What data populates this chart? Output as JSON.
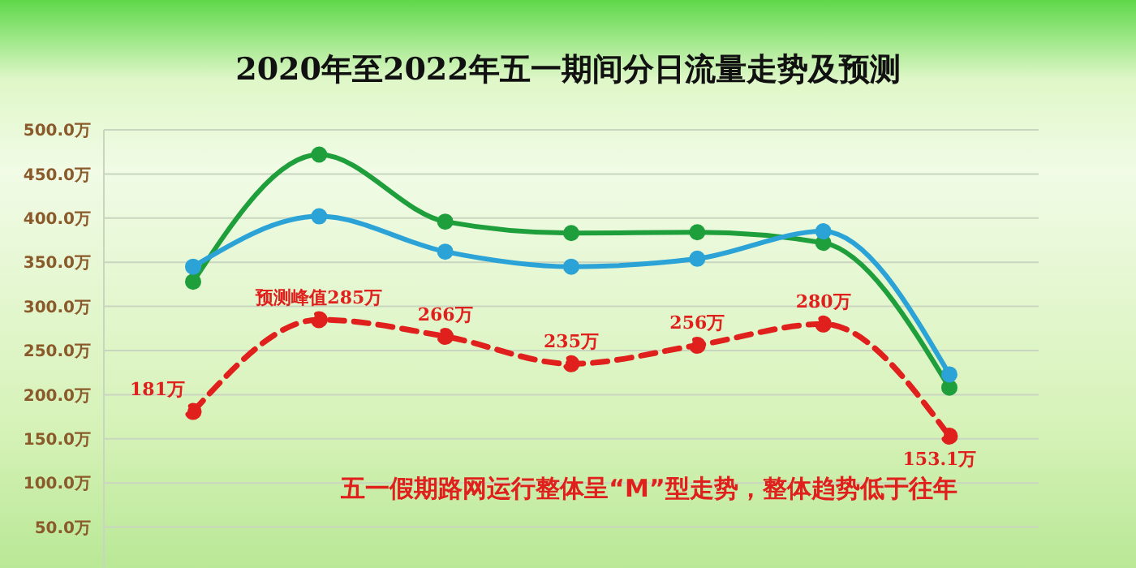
{
  "chart_data": {
    "type": "line",
    "title": "2020年至2022年五一期间分日流量走势及预测",
    "categories": [
      null,
      null,
      null,
      null,
      null,
      null,
      null
    ],
    "series": [
      {
        "color": "#1f9e3c",
        "values": [
          328,
          472,
          396,
          383,
          384,
          372,
          208
        ]
      },
      {
        "color": "#2ba3d6",
        "values": [
          345,
          402,
          362,
          345,
          354,
          385,
          223
        ]
      },
      {
        "color": "#e0201c",
        "line_style": "dashed",
        "values": [
          181,
          285,
          266,
          235,
          256,
          280,
          153.1
        ],
        "value_labels": [
          "181万",
          "预测峰值285万",
          "266万",
          "235万",
          "256万",
          "280万",
          "153.1万"
        ]
      }
    ],
    "ylim": [
      0,
      500
    ],
    "yticks": [
      {
        "value": 50,
        "label": "50.0万"
      },
      {
        "value": 100,
        "label": "100.0万"
      },
      {
        "value": 150,
        "label": "150.0万"
      },
      {
        "value": 200,
        "label": "200.0万"
      },
      {
        "value": 250,
        "label": "250.0万"
      },
      {
        "value": 300,
        "label": "300.0万"
      },
      {
        "value": 350,
        "label": "350.0万"
      },
      {
        "value": 400,
        "label": "400.0万"
      },
      {
        "value": 450,
        "label": "450.0万"
      },
      {
        "value": 500,
        "label": "500.0万"
      }
    ],
    "grid": "y",
    "marker": "circle",
    "tick_labels": "y",
    "annotations": [
      "五一假期路网运行整体呈“M”型走势，整体趋势低于往年"
    ]
  }
}
